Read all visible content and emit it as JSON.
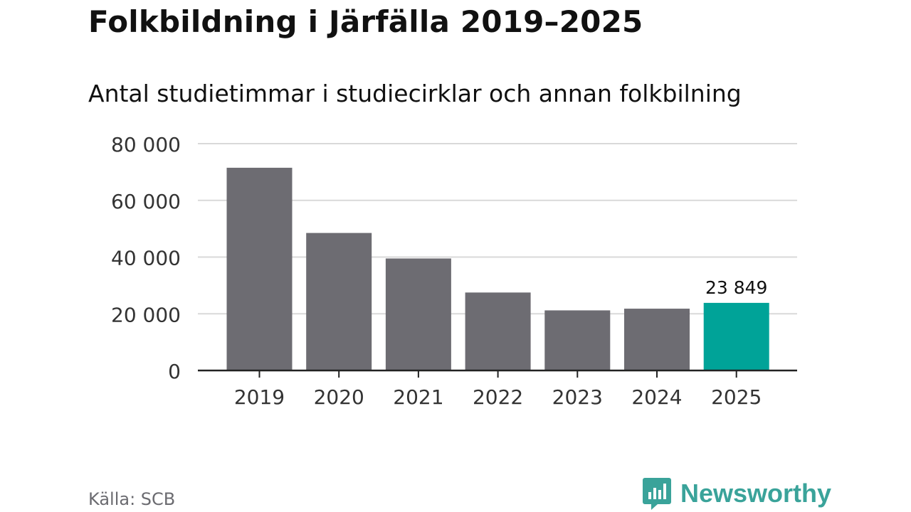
{
  "title": "Folkbildning i Järfälla 2019–2025",
  "subtitle": "Antal studietimmar i studiecirklar och annan folkbilning",
  "source": "Källa: SCB",
  "brand": "Newsworthy",
  "colors": {
    "bar": "#6d6c72",
    "highlight": "#00a398",
    "grid": "#d9d9d9",
    "axis": "#222222",
    "brand": "#3aa39a"
  },
  "chart_data": {
    "type": "bar",
    "categories": [
      "2019",
      "2020",
      "2021",
      "2022",
      "2023",
      "2024",
      "2025"
    ],
    "values": [
      71500,
      48500,
      39500,
      27500,
      21200,
      21800,
      23849
    ],
    "highlight_index": 6,
    "data_labels": [
      {
        "index": 6,
        "text": "23 849"
      }
    ],
    "yticks": [
      0,
      20000,
      40000,
      60000,
      80000
    ],
    "ytick_labels": [
      "0",
      "20 000",
      "40 000",
      "60 000",
      "80 000"
    ],
    "ylim": [
      0,
      80000
    ],
    "grid": true,
    "xlabel": "",
    "ylabel": ""
  }
}
